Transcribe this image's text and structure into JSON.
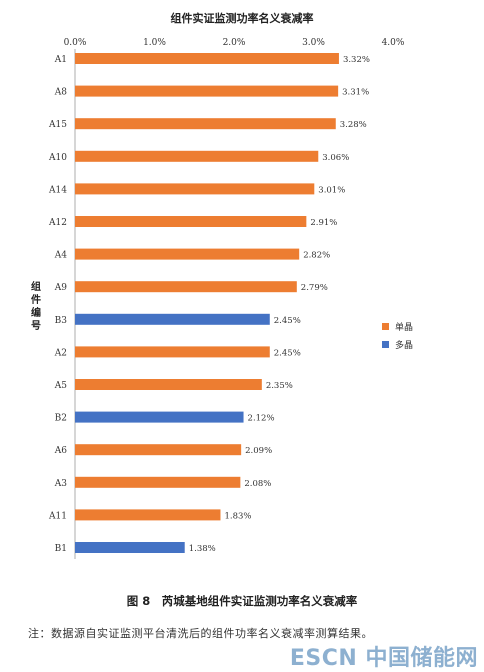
{
  "chart_data": {
    "type": "bar",
    "orientation": "horizontal",
    "title": "组件实证监测功率名义衰减率",
    "ylabel": "组件编号",
    "xlim": [
      0,
      4.0
    ],
    "xticks": [
      "0.0%",
      "1.0%",
      "2.0%",
      "3.0%",
      "4.0%"
    ],
    "categories": [
      "A1",
      "A8",
      "A15",
      "A10",
      "A14",
      "A12",
      "A4",
      "A9",
      "B3",
      "A2",
      "A5",
      "B2",
      "A6",
      "A3",
      "A11",
      "B1"
    ],
    "values": [
      3.32,
      3.31,
      3.28,
      3.06,
      3.01,
      2.91,
      2.82,
      2.79,
      2.45,
      2.45,
      2.35,
      2.12,
      2.09,
      2.08,
      1.83,
      1.38
    ],
    "value_labels": [
      "3.32%",
      "3.31%",
      "3.28%",
      "3.06%",
      "3.01%",
      "2.91%",
      "2.82%",
      "2.79%",
      "2.45%",
      "2.45%",
      "2.35%",
      "2.12%",
      "2.09%",
      "2.08%",
      "1.83%",
      "1.38%"
    ],
    "group": [
      "单晶",
      "单晶",
      "单晶",
      "单晶",
      "单晶",
      "单晶",
      "单晶",
      "单晶",
      "多晶",
      "单晶",
      "单晶",
      "多晶",
      "单晶",
      "单晶",
      "单晶",
      "多晶"
    ],
    "legend": [
      {
        "name": "单晶",
        "color": "#ed7d31"
      },
      {
        "name": "多晶",
        "color": "#4472c4"
      }
    ],
    "legend_position": "right",
    "grid": false
  },
  "caption": "图 8　芮城基地组件实证监测功率名义衰减率",
  "note": "注：数据源自实证监测平台清洗后的组件功率名义衰减率测算结果。",
  "watermark": "ESCN 中国储能网"
}
